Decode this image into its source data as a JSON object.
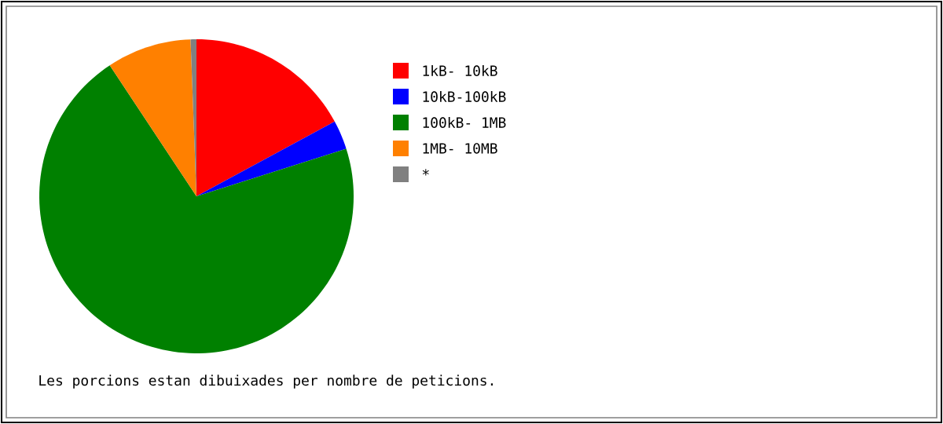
{
  "chart_data": {
    "type": "pie",
    "categories": [
      "1kB- 10kB",
      "10kB-100kB",
      "100kB- 1MB",
      "1MB- 10MB",
      "*"
    ],
    "values": [
      17.1,
      3.0,
      70.6,
      8.7,
      0.6
    ],
    "colors": [
      "#ff0000",
      "#0000ff",
      "#008000",
      "#ff8000",
      "#808080"
    ],
    "legend": "right",
    "annotations": [
      "Les porcions estan dibuixades per nombre de peticions."
    ]
  }
}
